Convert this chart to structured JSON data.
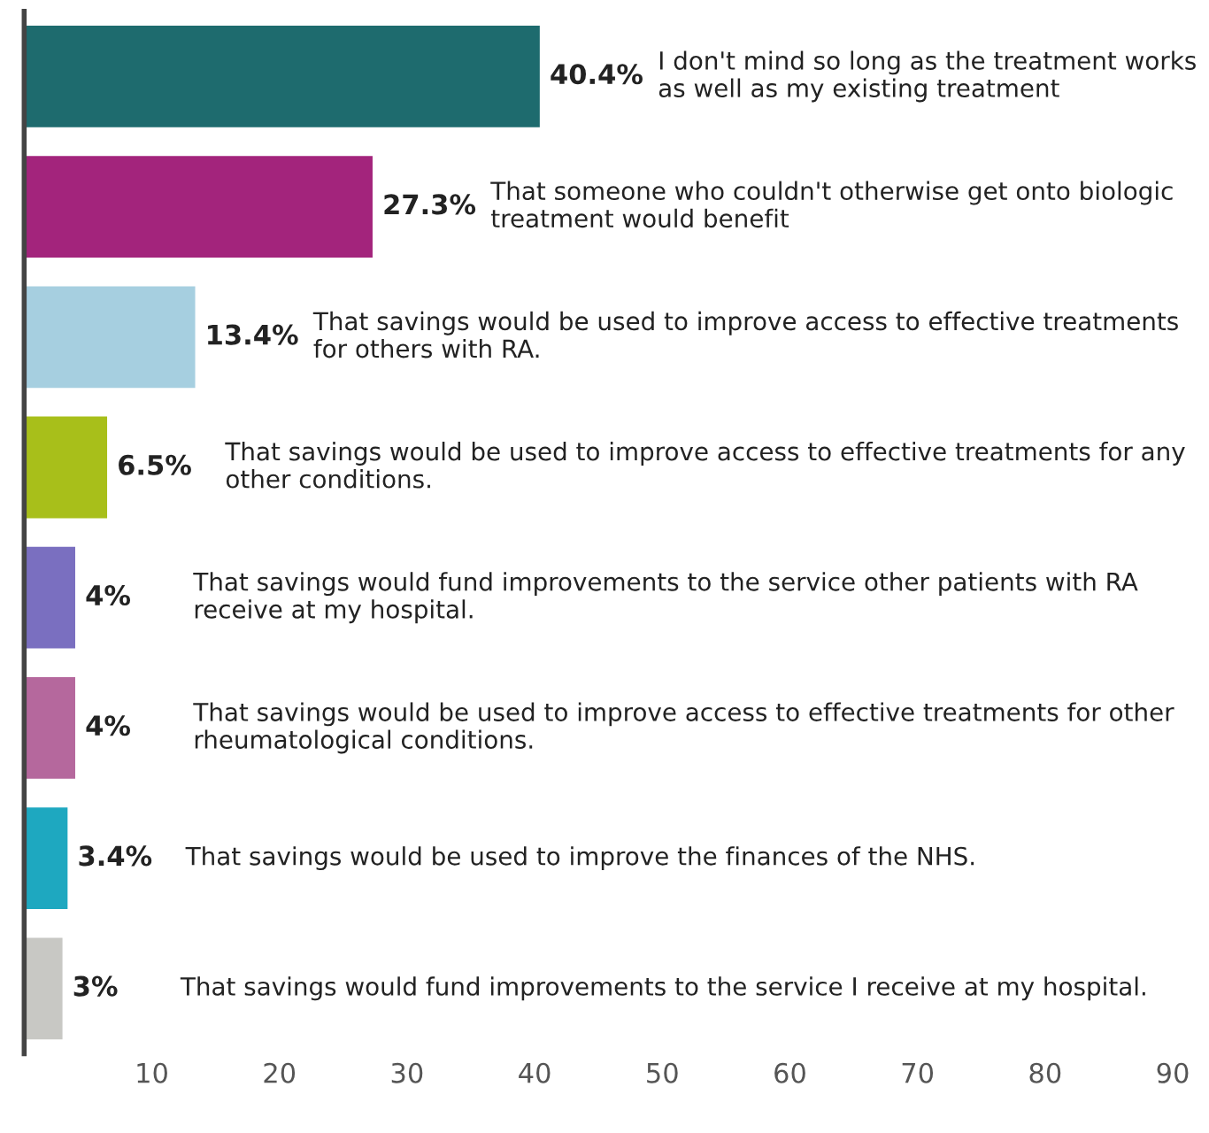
{
  "chart_data": {
    "type": "bar",
    "orientation": "horizontal",
    "categories": [
      "I don't mind so long as the treatment works as well as my existing treatment",
      "That someone who couldn't otherwise get onto biologic treatment would benefit",
      "That savings would be used to improve access to effective treatments for others with RA.",
      "That savings would be used to improve access to effective treatments for any other conditions.",
      "That savings would fund improvements to the service other patients with RA receive at my hospital.",
      "That savings would be used to improve access to effective treatments for other rheumatological conditions.",
      "That savings would be used to improve the finances of the NHS.",
      "That savings would fund improvements to the service I receive at my hospital."
    ],
    "values": [
      40.4,
      27.3,
      13.4,
      6.5,
      4,
      4,
      3.4,
      3
    ],
    "value_labels": [
      "40.4%",
      "27.3%",
      "13.4%",
      "6.5%",
      "4%",
      "4%",
      "3.4%",
      "3%"
    ],
    "colors": [
      "#1e6b6e",
      "#a3247c",
      "#a6cfe0",
      "#a8bf1a",
      "#7a6fc0",
      "#b5689d",
      "#1ea8c0",
      "#c8c8c4"
    ],
    "xlim": [
      0,
      90
    ],
    "xticks": [
      10,
      20,
      30,
      40,
      50,
      60,
      70,
      80,
      90
    ],
    "tick_labels": "x",
    "grid": false,
    "legend": false
  }
}
